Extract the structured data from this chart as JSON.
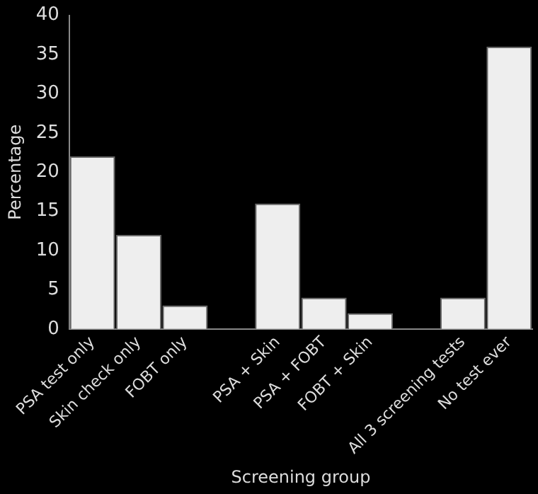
{
  "chart_data": {
    "type": "bar",
    "xlabel": "Screening group",
    "ylabel": "Percentage",
    "categories": [
      "PSA test only",
      "Skin check only",
      "FOBT only",
      null,
      "PSA + Skin",
      "PSA + FOBT",
      "FOBT + Skin",
      null,
      "All 3 screening tests",
      "No test ever"
    ],
    "values": [
      22,
      12,
      3,
      null,
      16,
      4,
      2,
      null,
      4,
      36
    ],
    "color": "#eeeeee",
    "ylim": [
      0,
      40
    ],
    "yticks": [
      0,
      5,
      10,
      15,
      20,
      25,
      30,
      35,
      40
    ],
    "grid": false,
    "legend": false
  }
}
